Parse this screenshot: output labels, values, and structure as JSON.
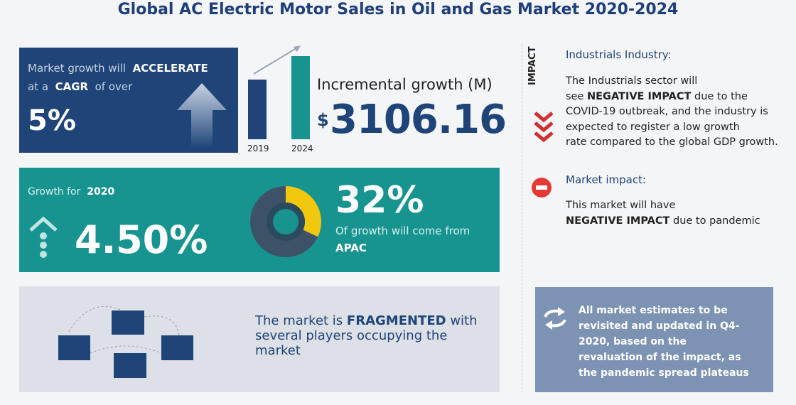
{
  "title": "Global AC Electric Motor Sales in Oil and Gas Market 2020-2024",
  "cagr_panel": {
    "line1": [
      "Market growth will",
      "ACCELERATE"
    ],
    "line2": [
      "at a",
      "CAGR",
      "of over"
    ],
    "value": "5%"
  },
  "incremental": {
    "years": [
      "2019",
      "2024"
    ],
    "label": "Incremental growth (M)",
    "currency": "$",
    "value": "3106.16"
  },
  "growth_panel": {
    "label": "Growth for",
    "year": "2020",
    "value": "4.50%"
  },
  "apac": {
    "share": {
      "value": 32,
      "label": "32%"
    },
    "text": "Of growth will come from",
    "region": "APAC"
  },
  "structure": {
    "text": "The market is",
    "emphasis": "FRAGMENTED",
    "rest": "with several players occupying the market"
  },
  "impact": {
    "vertical_label": "IMPACT",
    "heading": "Industrials Industry:",
    "lines": [
      "The Industrials sector will",
      "see",
      "NEGATIVE IMPACT",
      "due to the",
      "COVID-19 outbreak, and the industry is",
      "expected to register a low growth",
      "rate compared to the global GDP growth."
    ]
  },
  "market_impact": {
    "heading": "Market impact:",
    "line1": "This market will have",
    "emphasis": "NEGATIVE IMPACT",
    "rest": "due to pandemic"
  },
  "note": "All market estimates to be revisited and updated in Q4-2020, based on the revaluation of the impact, as the pandemic spread plateaus"
}
